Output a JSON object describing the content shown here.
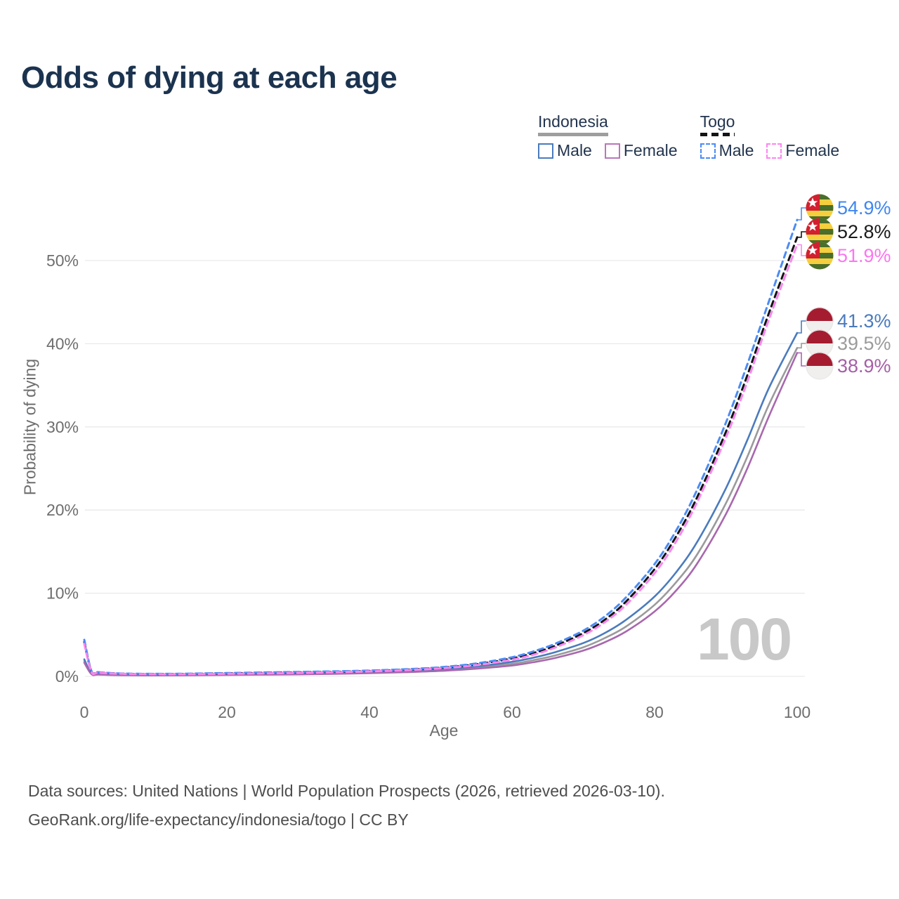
{
  "title": "Odds of dying at each age",
  "watermark_age": "100",
  "legend": {
    "groups": [
      {
        "name": "Indonesia",
        "underline_color": "#9e9e9e",
        "underline_style": "solid",
        "items": [
          {
            "label": "Male",
            "color": "#4a7bbd",
            "dashed": false
          },
          {
            "label": "Female",
            "color": "#b878b8",
            "dashed": false
          }
        ]
      },
      {
        "name": "Togo",
        "underline_color": "#141414",
        "underline_style": "dashed",
        "items": [
          {
            "label": "Male",
            "color": "#4b8bf5",
            "dashed": true
          },
          {
            "label": "Female",
            "color": "#fb86f0",
            "dashed": true
          }
        ]
      }
    ]
  },
  "axes": {
    "x": {
      "title": "Age",
      "ticks": [
        0,
        20,
        40,
        60,
        80,
        100
      ],
      "min": 0,
      "max": 100
    },
    "y": {
      "title": "Probability of dying",
      "ticks": [
        {
          "value": 0,
          "label": "0%"
        },
        {
          "value": 10,
          "label": "10%"
        },
        {
          "value": 20,
          "label": "20%"
        },
        {
          "value": 30,
          "label": "30%"
        },
        {
          "value": 40,
          "label": "40%"
        },
        {
          "value": 50,
          "label": "50%"
        }
      ]
    }
  },
  "chart_data": {
    "type": "line",
    "title": "Odds of dying at each age",
    "xlabel": "Age",
    "ylabel": "Probability of dying",
    "x_range": [
      0,
      100
    ],
    "y_range_percent": [
      0,
      58
    ],
    "grid": "horizontal",
    "legend_position": "top-right",
    "ages": [
      0,
      1,
      2,
      5,
      10,
      15,
      20,
      25,
      30,
      35,
      40,
      45,
      50,
      55,
      60,
      63,
      66,
      70,
      73,
      76,
      80,
      83,
      86,
      90,
      93,
      96,
      100
    ],
    "unit": "percent probability of dying at each age",
    "series": [
      {
        "name": "Indonesia Both sexes",
        "country": "Indonesia",
        "sex": "both",
        "color": "#9a9a9a",
        "dashed": false,
        "end_value_pct": 39.5,
        "values": [
          1.85,
          0.3,
          0.23,
          0.16,
          0.13,
          0.16,
          0.22,
          0.26,
          0.3,
          0.36,
          0.44,
          0.56,
          0.75,
          1.05,
          1.5,
          1.95,
          2.5,
          3.5,
          4.6,
          6.0,
          8.6,
          11.3,
          14.7,
          20.8,
          26.4,
          32.6,
          39.5
        ]
      },
      {
        "name": "Indonesia Male",
        "country": "Indonesia",
        "sex": "male",
        "color": "#4a7bbd",
        "dashed": false,
        "end_value_pct": 41.3,
        "values": [
          2.05,
          0.32,
          0.25,
          0.18,
          0.15,
          0.18,
          0.26,
          0.3,
          0.34,
          0.4,
          0.5,
          0.64,
          0.86,
          1.2,
          1.75,
          2.25,
          2.9,
          4.0,
          5.2,
          6.8,
          9.6,
          12.5,
          16.2,
          22.6,
          28.4,
          34.6,
          41.3
        ]
      },
      {
        "name": "Indonesia Female",
        "country": "Indonesia",
        "sex": "female",
        "color": "#a868ae",
        "dashed": false,
        "end_value_pct": 38.9,
        "values": [
          1.65,
          0.27,
          0.21,
          0.14,
          0.12,
          0.13,
          0.17,
          0.2,
          0.24,
          0.3,
          0.38,
          0.5,
          0.66,
          0.92,
          1.3,
          1.7,
          2.2,
          3.1,
          4.1,
          5.4,
          7.8,
          10.3,
          13.6,
          19.5,
          25.0,
          31.2,
          38.9
        ]
      },
      {
        "name": "Togo Both sexes",
        "country": "Togo",
        "sex": "both",
        "color": "#141414",
        "dashed": true,
        "end_value_pct": 52.8,
        "values": [
          4.15,
          0.6,
          0.47,
          0.33,
          0.28,
          0.3,
          0.36,
          0.42,
          0.48,
          0.55,
          0.65,
          0.8,
          1.03,
          1.45,
          2.15,
          2.8,
          3.65,
          5.2,
          6.8,
          9.0,
          12.9,
          16.8,
          21.6,
          29.4,
          36.2,
          43.6,
          52.8
        ]
      },
      {
        "name": "Togo Male",
        "country": "Togo",
        "sex": "male",
        "color": "#4b8bf5",
        "dashed": true,
        "end_value_pct": 54.9,
        "values": [
          4.4,
          0.65,
          0.5,
          0.35,
          0.3,
          0.33,
          0.4,
          0.47,
          0.53,
          0.6,
          0.7,
          0.85,
          1.1,
          1.55,
          2.3,
          3.0,
          3.9,
          5.5,
          7.2,
          9.5,
          13.5,
          17.5,
          22.5,
          30.5,
          37.5,
          45.0,
          54.9
        ]
      },
      {
        "name": "Togo Female",
        "country": "Togo",
        "sex": "female",
        "color": "#fb86f0",
        "dashed": true,
        "end_value_pct": 51.9,
        "values": [
          3.9,
          0.55,
          0.44,
          0.31,
          0.26,
          0.27,
          0.31,
          0.36,
          0.42,
          0.5,
          0.6,
          0.74,
          0.96,
          1.35,
          2.0,
          2.6,
          3.45,
          4.95,
          6.5,
          8.6,
          12.4,
          16.2,
          21.0,
          28.7,
          35.4,
          42.8,
          51.9
        ]
      }
    ]
  },
  "end_labels": [
    {
      "text": "54.9%",
      "flag": "togo",
      "series": "Togo Male",
      "color": "#3f86f0"
    },
    {
      "text": "52.8%",
      "flag": "togo",
      "series": "Togo Both sexes",
      "color": "#1a1a1a"
    },
    {
      "text": "51.9%",
      "flag": "togo",
      "series": "Togo Female",
      "color": "#fb76f0"
    },
    {
      "text": "41.3%",
      "flag": "indonesia",
      "series": "Indonesia Male",
      "color": "#4a7bbd"
    },
    {
      "text": "39.5%",
      "flag": "indonesia",
      "series": "Indonesia Both sexes",
      "color": "#9b9b9b"
    },
    {
      "text": "38.9%",
      "flag": "indonesia",
      "series": "Indonesia Female",
      "color": "#a55fa7"
    }
  ],
  "flag_colors": {
    "togo_green": "#4a6e2b",
    "togo_yellow": "#f5cf3e",
    "togo_red": "#d32030",
    "indonesia_red": "#a51c30",
    "indonesia_white": "#f0efed"
  },
  "footer": {
    "line1": "Data sources: United Nations | World Population Prospects (2026, retrieved 2026-03-10).",
    "line2": "GeoRank.org/life-expectancy/indonesia/togo | CC BY"
  }
}
